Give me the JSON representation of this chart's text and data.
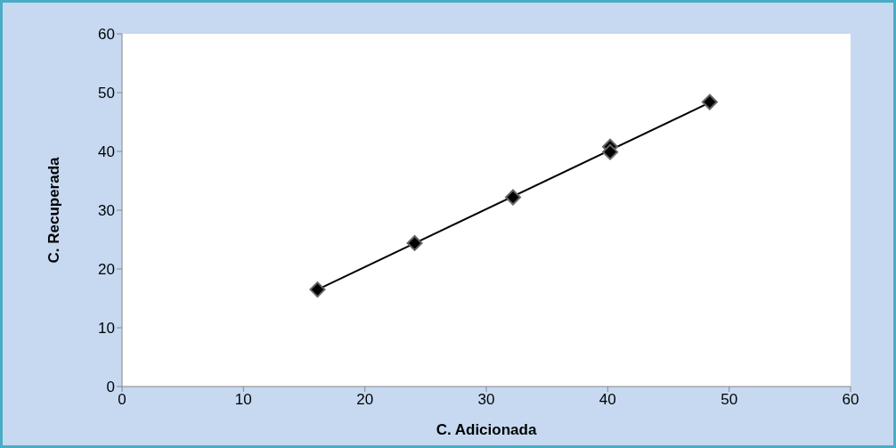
{
  "chart_data": {
    "type": "scatter",
    "xlabel": "C. Adicionada",
    "ylabel": "C. Recuperada",
    "xlim": [
      0,
      60
    ],
    "ylim": [
      0,
      60
    ],
    "xticks": [
      0,
      10,
      20,
      30,
      40,
      50,
      60
    ],
    "yticks": [
      0,
      10,
      20,
      30,
      40,
      50,
      60
    ],
    "grid": false,
    "legend": false,
    "series": [
      {
        "color": "#000000",
        "marker": "diamond",
        "x": [
          16.1,
          24.1,
          32.2,
          40.2,
          40.2,
          48.4
        ],
        "values": [
          16.5,
          24.4,
          32.2,
          40.8,
          39.9,
          48.4
        ]
      },
      {
        "type": "line",
        "marker": "none",
        "color": "#000000",
        "x": [
          16.1,
          48.4
        ],
        "values": [
          16.5,
          48.3
        ]
      }
    ]
  }
}
